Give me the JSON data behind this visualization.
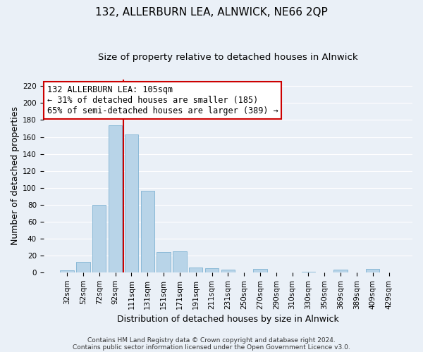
{
  "title": "132, ALLERBURN LEA, ALNWICK, NE66 2QP",
  "subtitle": "Size of property relative to detached houses in Alnwick",
  "xlabel": "Distribution of detached houses by size in Alnwick",
  "ylabel": "Number of detached properties",
  "bar_labels": [
    "32sqm",
    "52sqm",
    "72sqm",
    "92sqm",
    "111sqm",
    "131sqm",
    "151sqm",
    "171sqm",
    "191sqm",
    "211sqm",
    "231sqm",
    "250sqm",
    "270sqm",
    "290sqm",
    "310sqm",
    "330sqm",
    "350sqm",
    "369sqm",
    "389sqm",
    "409sqm",
    "429sqm"
  ],
  "bar_values": [
    2,
    12,
    80,
    174,
    163,
    96,
    24,
    25,
    6,
    5,
    3,
    0,
    4,
    0,
    0,
    1,
    0,
    3,
    0,
    4,
    0
  ],
  "bar_color": "#b8d4e8",
  "bar_edge_color": "#7fb3d3",
  "highlight_line_color": "#cc0000",
  "highlight_between": 3,
  "annotation_text_line1": "132 ALLERBURN LEA: 105sqm",
  "annotation_text_line2": "← 31% of detached houses are smaller (185)",
  "annotation_text_line3": "65% of semi-detached houses are larger (389) →",
  "annotation_box_color": "#ffffff",
  "annotation_box_edge_color": "#cc0000",
  "ylim": [
    0,
    228
  ],
  "yticks": [
    0,
    20,
    40,
    60,
    80,
    100,
    120,
    140,
    160,
    180,
    200,
    220
  ],
  "footer_line1": "Contains HM Land Registry data © Crown copyright and database right 2024.",
  "footer_line2": "Contains public sector information licensed under the Open Government Licence v3.0.",
  "background_color": "#eaf0f7",
  "grid_color": "#ffffff",
  "title_fontsize": 11,
  "subtitle_fontsize": 9.5,
  "axis_label_fontsize": 9,
  "tick_fontsize": 7.5,
  "annotation_fontsize": 8.5,
  "footer_fontsize": 6.5
}
